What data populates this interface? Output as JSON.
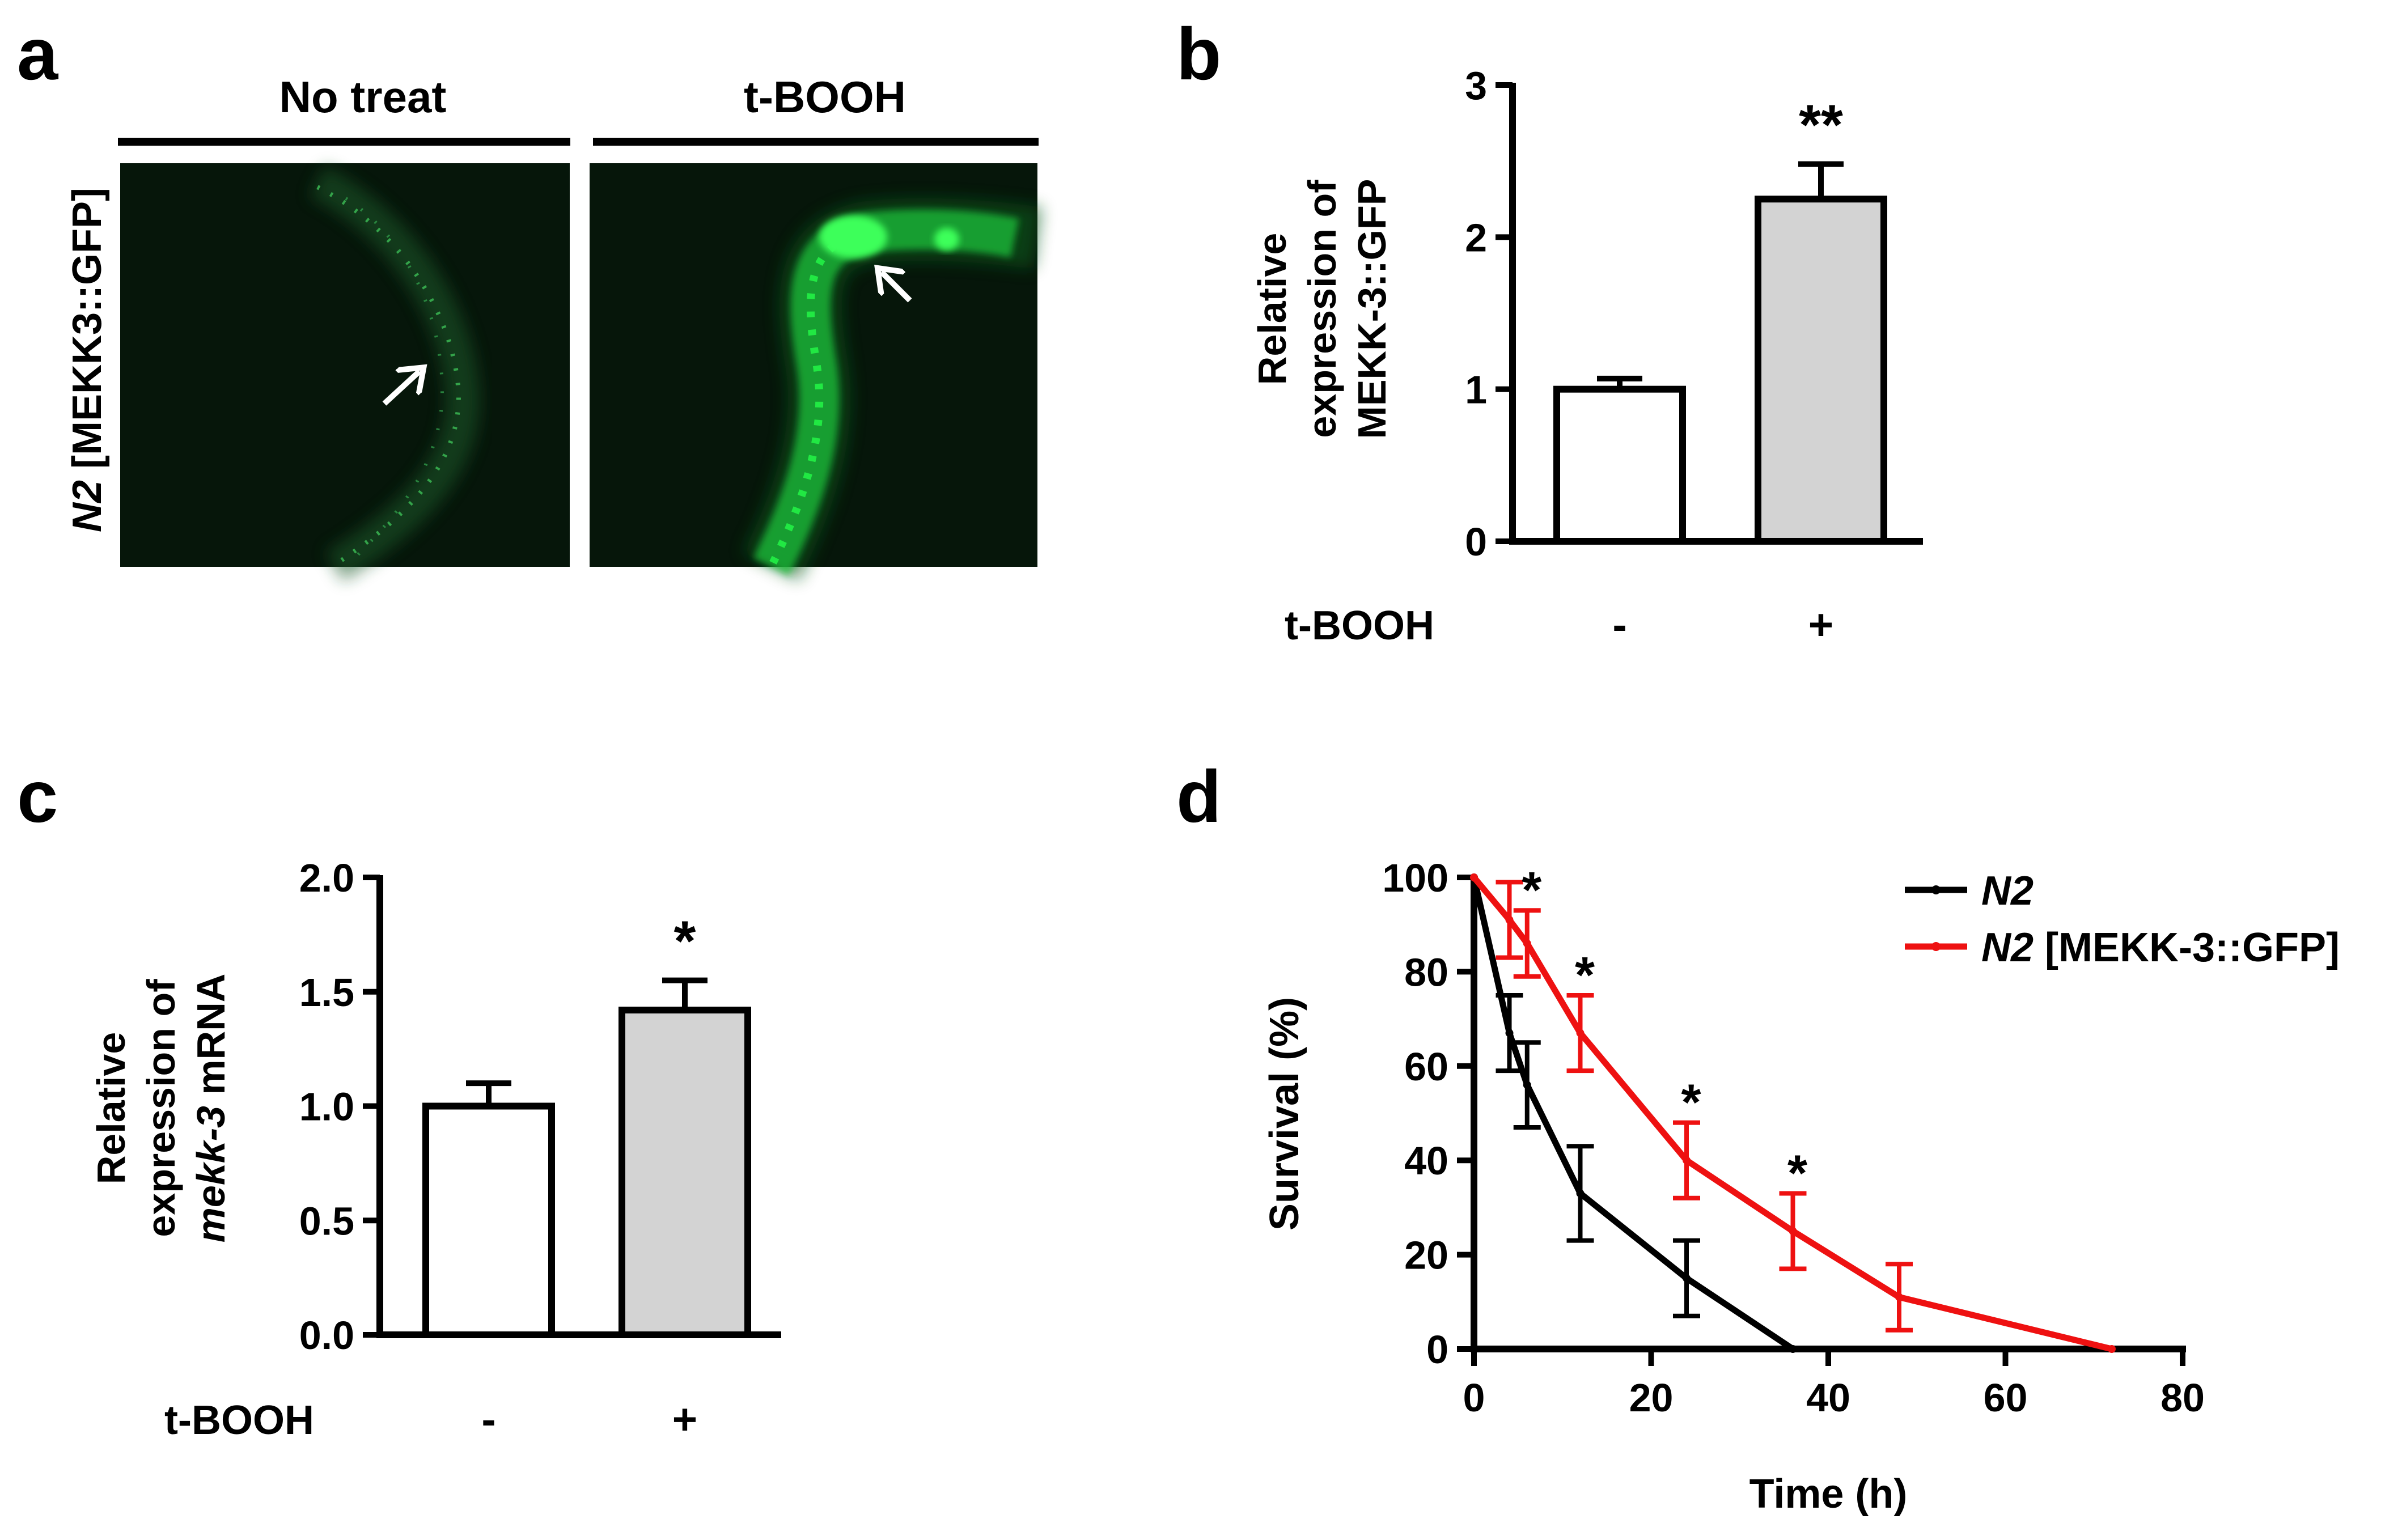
{
  "panel_a": {
    "letter": "a",
    "conditions": [
      "No treat",
      "t-BOOH"
    ],
    "row_label_italic": "N2",
    "row_label_rest": " [MEKK3::GFP]",
    "image_colors": {
      "background": "#06160a",
      "worm_dim": "#2f9a48",
      "worm_bright": "#22f046",
      "arrow": "#ffffff"
    }
  },
  "chart_data": [
    {
      "panel": "b",
      "type": "bar",
      "categories": [
        "-",
        "+"
      ],
      "category_axis_label": "t-BOOH",
      "values": [
        1.0,
        2.25
      ],
      "error": [
        0.07,
        0.23
      ],
      "significance": [
        "",
        "**"
      ],
      "ylabel_lines": [
        "Relative",
        "expression of",
        "MEKK-3::GFP"
      ],
      "ylim": [
        0,
        3
      ],
      "yticks": [
        "0",
        "1",
        "2",
        "3"
      ],
      "bar_colors": [
        "#ffffff",
        "#d3d3d3"
      ]
    },
    {
      "panel": "c",
      "type": "bar",
      "categories": [
        "-",
        "+"
      ],
      "category_axis_label": "t-BOOH",
      "values": [
        1.0,
        1.42
      ],
      "error": [
        0.1,
        0.13
      ],
      "significance": [
        "",
        "*"
      ],
      "ylabel_lines": [
        "Relative",
        "expression of"
      ],
      "ylabel_italic": "mekk-3",
      "ylabel_rest": " mRNA",
      "ylim": [
        0,
        2.0
      ],
      "yticks": [
        "0.0",
        "0.5",
        "1.0",
        "1.5",
        "2.0"
      ],
      "bar_colors": [
        "#ffffff",
        "#d3d3d3"
      ]
    },
    {
      "panel": "d",
      "type": "line",
      "xlabel": "Time (h)",
      "ylabel": "Survival (%)",
      "xlim": [
        0,
        80
      ],
      "ylim": [
        0,
        100
      ],
      "xticks": [
        "0",
        "20",
        "40",
        "60",
        "80"
      ],
      "yticks": [
        "0",
        "20",
        "40",
        "60",
        "80",
        "100"
      ],
      "legend_position": "top-right",
      "series": [
        {
          "name_italic": "N2",
          "name_rest": "",
          "color": "#000000",
          "x": [
            0,
            4,
            6,
            12,
            24,
            36
          ],
          "y": [
            100,
            67,
            56,
            33,
            15,
            0
          ],
          "error": [
            0,
            8,
            9,
            10,
            8,
            0
          ]
        },
        {
          "name_italic": "N2",
          "name_rest": " [MEKK-3::GFP]",
          "color": "#ee1111",
          "x": [
            0,
            4,
            6,
            12,
            24,
            36,
            48,
            72
          ],
          "y": [
            100,
            91,
            86,
            67,
            40,
            25,
            11,
            0
          ],
          "error": [
            0,
            8,
            7,
            8,
            8,
            8,
            7,
            0
          ]
        }
      ],
      "significance": [
        {
          "x": 6,
          "label": "*"
        },
        {
          "x": 12,
          "label": "*"
        },
        {
          "x": 24,
          "label": "*"
        },
        {
          "x": 36,
          "label": "*"
        }
      ]
    }
  ]
}
